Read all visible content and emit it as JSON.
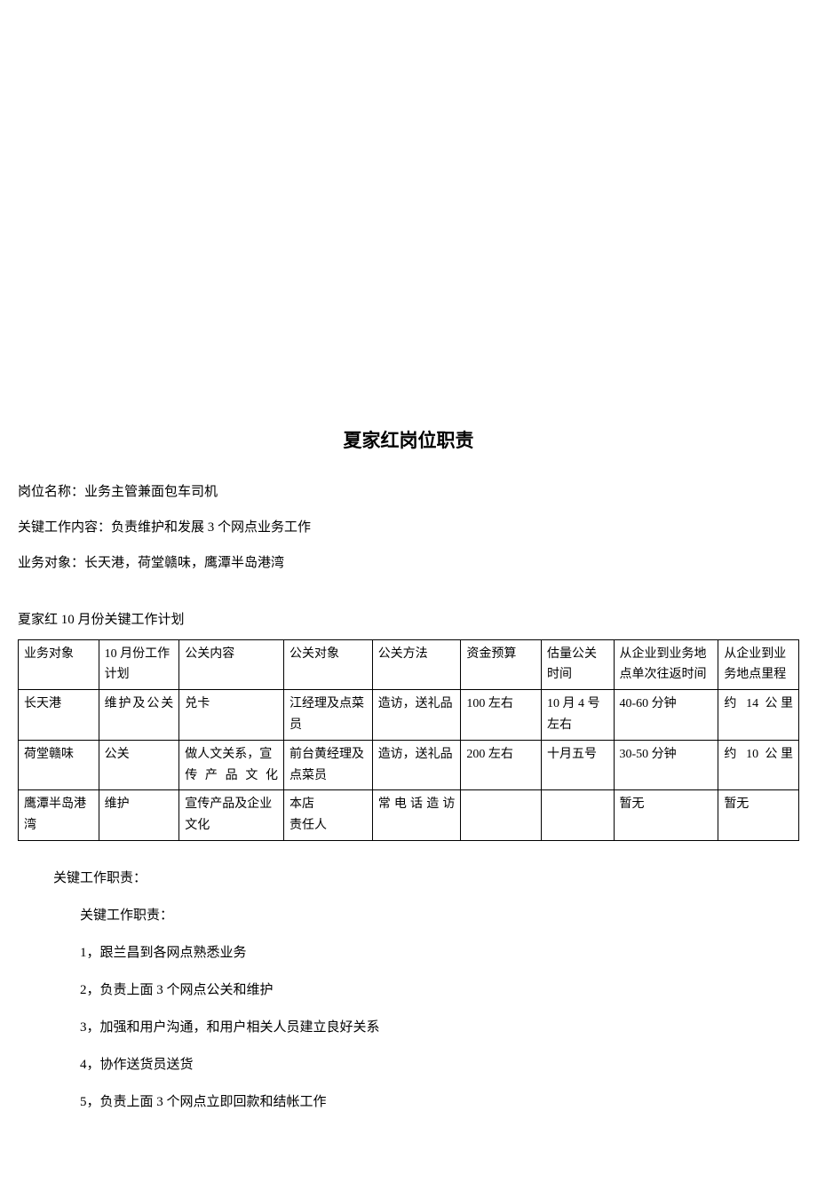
{
  "title": "夏家红岗位职责",
  "info": {
    "position": "岗位名称：业务主管兼面包车司机",
    "keywork": "关键工作内容：负责维护和发展 3 个网点业务工作",
    "targets": "业务对象：长天港，荷堂赣味，鹰潭半岛港湾"
  },
  "subtitle": "夏家红 10 月份关键工作计划",
  "table": {
    "headers": [
      "业务对象",
      "10 月份工作计划",
      "公关内容",
      "公关对象",
      "公关方法",
      "资金预算",
      "估量公关时间",
      "从企业到业务地点单次往返时间",
      "从企业到业务地点里程"
    ],
    "rows": [
      {
        "c0": "长天港",
        "c1": "维护及公关",
        "c2": "兑卡",
        "c3": "江经理及点菜员",
        "c4": "造访，送礼品",
        "c5": "100 左右",
        "c6": "10 月 4 号左右",
        "c7": "40-60 分钟",
        "c8": "约 14 公里"
      },
      {
        "c0": "荷堂赣味",
        "c1": "公关",
        "c2": "做人文关系，宣传产品文化",
        "c3": "前台黄经理及点菜员",
        "c4": "造访，送礼品",
        "c5": "200 左右",
        "c6": "十月五号",
        "c7": "30-50 分钟",
        "c8": "约 10 公里"
      },
      {
        "c0": "鹰潭半岛港湾",
        "c1": "维护",
        "c2": "宣传产品及企业文化",
        "c3": "本店\n责任人",
        "c4": "常电话造访",
        "c5": "",
        "c6": "",
        "c7": "暂无",
        "c8": "暂无"
      }
    ]
  },
  "duties": {
    "heading": "关键工作职责：",
    "subheading": "关键工作职责：",
    "items": [
      "1，跟兰昌到各网点熟悉业务",
      "2，负责上面 3 个网点公关和维护",
      "3，加强和用户沟通，和用户相关人员建立良好关系",
      "4，协作送货员送货",
      "5，负责上面 3 个网点立即回款和结帐工作"
    ]
  },
  "styling": {
    "background_color": "#ffffff",
    "text_color": "#000000",
    "border_color": "#000000",
    "title_fontsize": 21,
    "body_fontsize": 15,
    "table_fontsize": 14,
    "font_family": "SimSun"
  }
}
